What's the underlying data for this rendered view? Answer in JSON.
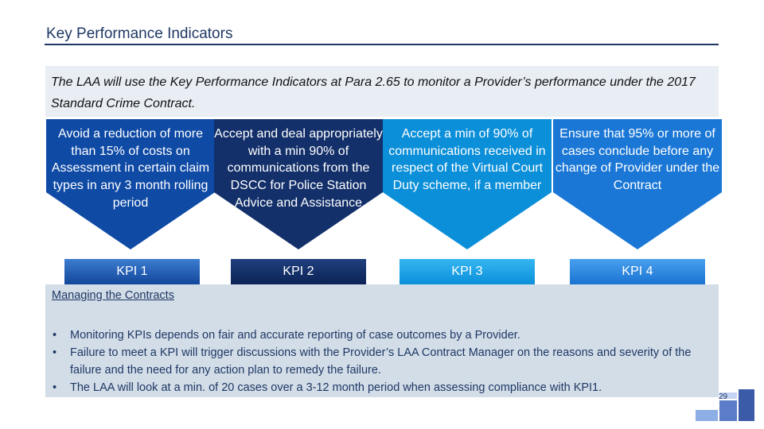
{
  "slide": {
    "title": "Key Performance Indicators",
    "intro": "The LAA will use the Key Performance Indicators at Para 2.65 to monitor a Provider’s performance under the 2017 Standard Crime Contract.",
    "page_number": "29"
  },
  "kpis": [
    {
      "description": "Avoid a reduction of more than 15% of costs on Assessment in certain claim types in any 3 month rolling period",
      "label": "KPI 1",
      "color": "#0f4aa5"
    },
    {
      "description": "Accept and deal appropriately with a min 90% of communications from the DSCC for Police Station Advice and Assistance",
      "label": "KPI 2",
      "color": "#13306a"
    },
    {
      "description": "Accept  a min of 90% of communications received in respect of the Virtual Court Duty scheme, if a member",
      "label": "KPI 3",
      "color": "#0b8fd9"
    },
    {
      "description": "Ensure that 95% or more of cases conclude before any change of Provider under the Contract",
      "label": "KPI 4",
      "color": "#1a77d6"
    }
  ],
  "managing": {
    "heading": "Managing the Contracts",
    "bullets": [
      "Monitoring KPIs depends on fair and accurate reporting of case outcomes by a Provider.",
      "Failure to meet a KPI will trigger discussions with the Provider’s LAA Contract Manager on the reasons and severity of the failure and the need for any action plan to remedy the failure.",
      "The LAA will look at a min. of 20 cases over a 3-12 month period when assessing compliance with KPI1."
    ],
    "bullet_symbol": "•"
  },
  "colors": {
    "title": "#1f3864",
    "intro_bg": "#e9eef5",
    "managing_bg": "#d2dde8"
  }
}
